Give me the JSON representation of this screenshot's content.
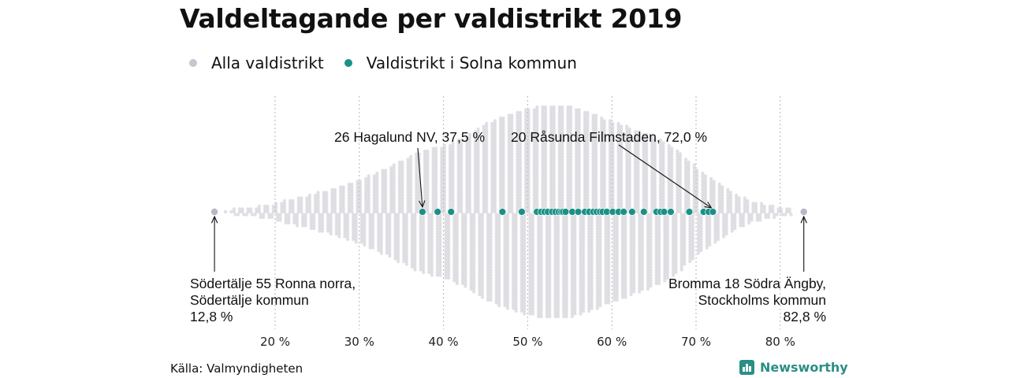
{
  "title": "Valdeltagande per valdistrikt 2019",
  "legend": [
    {
      "label": "Alla valdistrikt",
      "color": "#c8c6d0"
    },
    {
      "label": "Valdistrikt i Solna kommun",
      "color": "#1a9186"
    }
  ],
  "source": "Källa: Valmyndigheten",
  "logo": {
    "text": "Newsworthy",
    "icon": "bar-chart-icon"
  },
  "chart_data": {
    "type": "scatter",
    "subtype": "beeswarm",
    "xlabel": "",
    "ylabel": "",
    "xlim": [
      10,
      85
    ],
    "x_ticks": [
      20,
      30,
      40,
      50,
      60,
      70,
      80
    ],
    "x_tick_labels": [
      "20 %",
      "30 %",
      "40 %",
      "50 %",
      "60 %",
      "70 %",
      "80 %"
    ],
    "grid": "vertical dotted",
    "legend_position": "top-left",
    "all_districts_distribution": {
      "x": [
        12.8,
        14,
        16,
        18,
        20,
        22,
        24,
        26,
        28,
        30,
        32,
        34,
        36,
        38,
        40,
        42,
        44,
        46,
        48,
        50,
        52,
        54,
        56,
        58,
        60,
        62,
        64,
        66,
        68,
        70,
        72,
        74,
        76,
        78,
        80,
        82.8
      ],
      "relative_density": [
        0.02,
        0.02,
        0.03,
        0.05,
        0.08,
        0.12,
        0.16,
        0.2,
        0.24,
        0.3,
        0.36,
        0.44,
        0.52,
        0.58,
        0.62,
        0.68,
        0.78,
        0.86,
        0.92,
        0.97,
        0.99,
        1.0,
        0.97,
        0.91,
        0.85,
        0.79,
        0.73,
        0.66,
        0.56,
        0.42,
        0.3,
        0.2,
        0.12,
        0.07,
        0.04,
        0.02
      ]
    },
    "series": [
      {
        "name": "Alla valdistrikt",
        "values": [
          12.8,
          82.8
        ]
      },
      {
        "name": "Valdistrikt i Solna kommun",
        "values": [
          37.5,
          39.3,
          40.9,
          47.0,
          49.3,
          51.1,
          51.6,
          52.0,
          52.4,
          52.9,
          53.3,
          53.7,
          54.0,
          54.2,
          54.5,
          55.3,
          56.0,
          56.8,
          57.3,
          57.8,
          58.2,
          58.6,
          58.9,
          59.4,
          60.1,
          60.8,
          61.4,
          62.4,
          63.8,
          65.3,
          65.8,
          66.2,
          67.0,
          69.2,
          70.9,
          71.5,
          72.0
        ]
      }
    ],
    "annotations": [
      {
        "lines": [
          "26 Hagalund NV, 37,5 %"
        ],
        "x": 37.5,
        "position": "above"
      },
      {
        "lines": [
          "20 Råsunda Filmstaden, 72,0 %"
        ],
        "x": 72.0,
        "position": "above"
      },
      {
        "lines": [
          "Södertälje 55 Ronna norra,",
          "Södertälje kommun",
          "12,8 %"
        ],
        "x": 12.8,
        "position": "below-left"
      },
      {
        "lines": [
          "Bromma 18 Södra Ängby,",
          "Stockholms kommun",
          "82,8 %"
        ],
        "x": 82.8,
        "position": "below-right"
      }
    ]
  }
}
